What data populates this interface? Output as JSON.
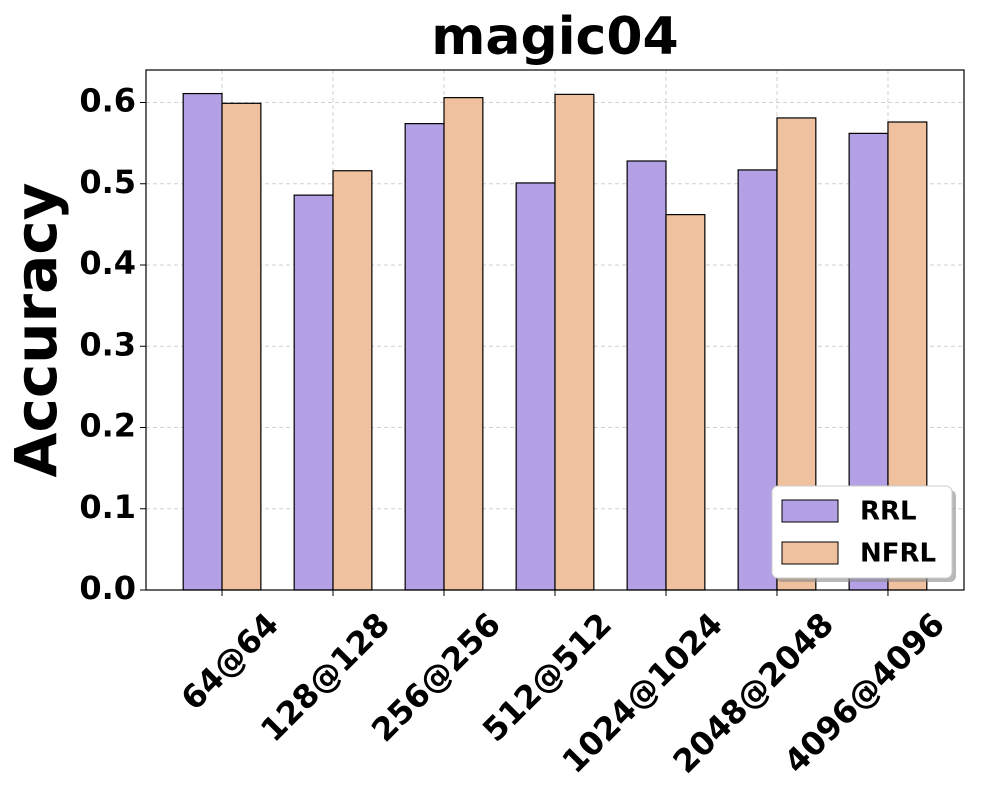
{
  "chart_data": {
    "type": "bar",
    "title": "magic04",
    "y_label": "Accuracy",
    "categories": [
      "64@64",
      "128@128",
      "256@256",
      "512@512",
      "1024@1024",
      "2048@2048",
      "4096@4096"
    ],
    "series": [
      {
        "name": "RRL",
        "color": "#b4a0e5",
        "values": [
          0.611,
          0.486,
          0.574,
          0.501,
          0.528,
          0.517,
          0.562
        ]
      },
      {
        "name": "NFRL",
        "color": "#f0c19e",
        "values": [
          0.599,
          0.516,
          0.606,
          0.61,
          0.462,
          0.581,
          0.576
        ]
      }
    ],
    "ylim": [
      0,
      0.64
    ],
    "yticks": [
      {
        "value": 0,
        "label": "0.0"
      },
      0.1,
      0.2,
      0.3,
      0.4,
      0.5,
      0.6
    ],
    "grid": true,
    "legend": "lower right"
  }
}
